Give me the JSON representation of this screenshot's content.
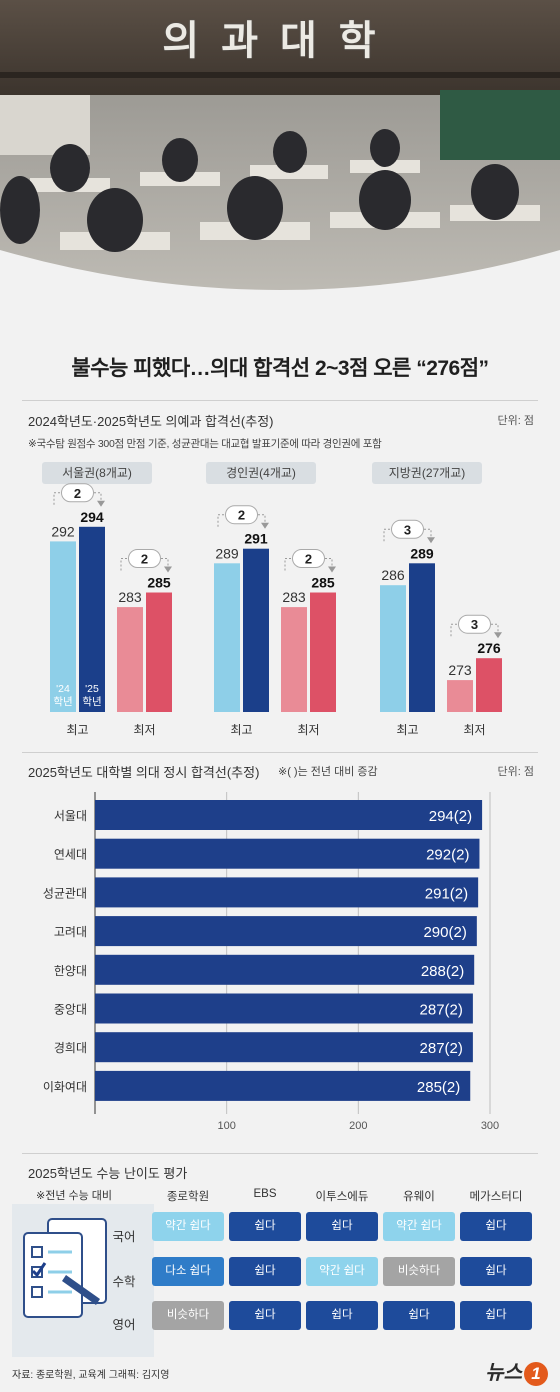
{
  "hero": {
    "banner_text": "의과대학"
  },
  "headline": "불수능 피했다…의대 합격선 2~3점 오른 “276점”",
  "section1": {
    "title": "2024학년도·2025학년도 의예과 합격선(추정)",
    "unit": "단위: 점",
    "note": "※국수탐 원점수 300점 만점 기준, 성균관대는 대교협 발표기준에 따라 경인권에 포함",
    "bar_label_2024": "'24 학년",
    "bar_label_2025": "'25 학년",
    "groups": [
      {
        "region": "서울권(8개교)",
        "high": {
          "label": "최고",
          "y2024": 292,
          "y2025": 294,
          "diff": "2"
        },
        "low": {
          "label": "최저",
          "y2024": 283,
          "y2025": 285,
          "diff": "2"
        }
      },
      {
        "region": "경인권(4개교)",
        "high": {
          "label": "최고",
          "y2024": 289,
          "y2025": 291,
          "diff": "2"
        },
        "low": {
          "label": "최저",
          "y2024": 283,
          "y2025": 285,
          "diff": "2"
        }
      },
      {
        "region": "지방권(27개교)",
        "high": {
          "label": "최고",
          "y2024": 286,
          "y2025": 289,
          "diff": "3"
        },
        "low": {
          "label": "최저",
          "y2024": 273,
          "y2025": 276,
          "diff": "3"
        }
      }
    ]
  },
  "section2": {
    "title": "2025학년도 대학별 의대 정시 합격선(추정)",
    "note": "※( )는 전년 대비 증감",
    "unit": "단위: 점"
  },
  "chart_data": [
    {
      "type": "bar",
      "title": "2024학년도·2025학년도 의예과 합격선(추정)",
      "categories": [
        "서울권 최고",
        "서울권 최저",
        "경인권 최고",
        "경인권 최저",
        "지방권 최고",
        "지방권 최저"
      ],
      "series": [
        {
          "name": "'24 학년",
          "values": [
            292,
            283,
            289,
            283,
            286,
            273
          ]
        },
        {
          "name": "'25 학년",
          "values": [
            294,
            285,
            291,
            285,
            289,
            276
          ]
        }
      ]
    },
    {
      "type": "bar",
      "orientation": "horizontal",
      "title": "2025학년도 대학별 의대 정시 합격선(추정)",
      "categories": [
        "서울대",
        "연세대",
        "성균관대",
        "고려대",
        "한양대",
        "중앙대",
        "경희대",
        "이화여대"
      ],
      "values": [
        294,
        292,
        291,
        290,
        288,
        287,
        287,
        285
      ],
      "labels": [
        "294(2)",
        "292(2)",
        "291(2)",
        "290(2)",
        "288(2)",
        "287(2)",
        "287(2)",
        "285(2)"
      ],
      "xticks": [
        100,
        200,
        300
      ],
      "xlim": [
        0,
        300
      ],
      "grid": true
    }
  ],
  "section3": {
    "title": "2025학년도 수능 난이도 평가",
    "note": "※전년 수능 대비",
    "institutions": [
      "종로학원",
      "EBS",
      "이투스에듀",
      "유웨이",
      "메가스터디"
    ],
    "subjects": [
      {
        "name": "국어",
        "ratings": [
          "약간 쉽다",
          "쉽다",
          "쉽다",
          "약간 쉽다",
          "쉽다"
        ],
        "levels": [
          "slight",
          "easy",
          "easy",
          "slight",
          "easy"
        ]
      },
      {
        "name": "수학",
        "ratings": [
          "다소 쉽다",
          "쉽다",
          "약간 쉽다",
          "비슷하다",
          "쉽다"
        ],
        "levels": [
          "moderate",
          "easy",
          "slight",
          "similar",
          "easy"
        ]
      },
      {
        "name": "영어",
        "ratings": [
          "비슷하다",
          "쉽다",
          "쉽다",
          "쉽다",
          "쉽다"
        ],
        "levels": [
          "similar",
          "easy",
          "easy",
          "easy",
          "easy"
        ]
      }
    ]
  },
  "colors": {
    "y2024_high": "#8ecfe8",
    "y2025_high": "#1b3f8a",
    "y2024_low": "#e98b96",
    "y2025_low": "#dd5166",
    "bar_navy": "#1e3f8a",
    "panel": "#e4e9ed"
  },
  "source": "자료: 종로학원, 교육계   그래픽: 김지영",
  "logo": {
    "text": "뉴스",
    "mark": "1"
  }
}
